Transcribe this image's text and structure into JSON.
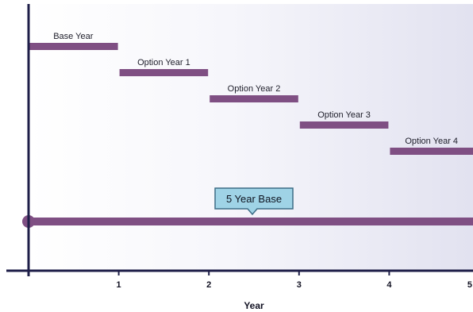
{
  "diagram": {
    "x_axis_title": "Year",
    "x_ticks": [
      "1",
      "2",
      "3",
      "4",
      "5"
    ],
    "periods": [
      {
        "label": "Base Year",
        "start": 0,
        "end": 1
      },
      {
        "label": "Option Year 1",
        "start": 1,
        "end": 2
      },
      {
        "label": "Option Year 2",
        "start": 2,
        "end": 3
      },
      {
        "label": "Option Year 3",
        "start": 3,
        "end": 4
      },
      {
        "label": "Option Year 4",
        "start": 4,
        "end": 5
      }
    ],
    "base_span": {
      "start": 0,
      "end": 5
    },
    "callout": "5 Year Base",
    "colors": {
      "bar": "#7f4f83",
      "axis": "#1e1e48",
      "callout_fill": "#9fd3e6",
      "callout_border": "#3d6d86"
    }
  }
}
